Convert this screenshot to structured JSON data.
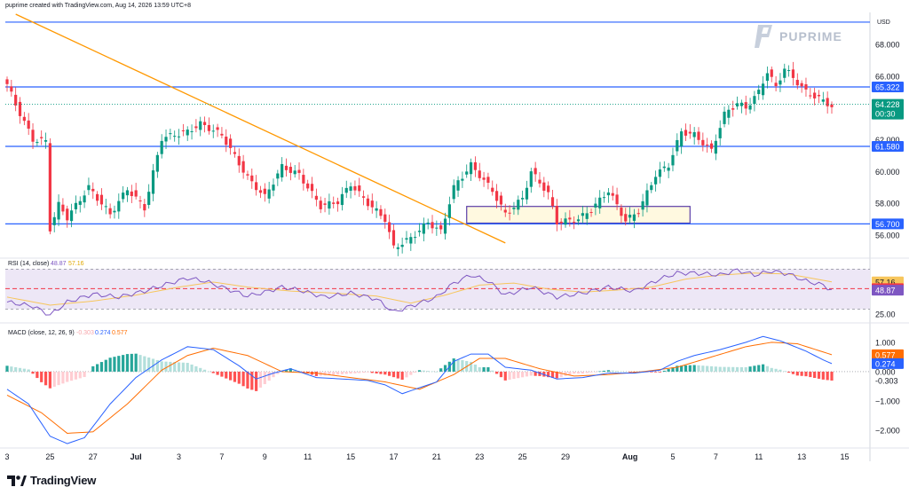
{
  "header": {
    "note": "puprime created with TradingView.com, Aug 14, 2026 13:59 UTC+8"
  },
  "branding": {
    "watermark": "PUPRIME",
    "footer_logo_text": "TradingView"
  },
  "colors": {
    "bull": "#089981",
    "bear": "#f23645",
    "level": "#2962ff",
    "trendline": "#ff9800",
    "rsi": "#7e57c2",
    "rsi_ma": "#f7c65c",
    "rsi_band": "#ede7f6",
    "macd": "#2962ff",
    "signal": "#ff6d00",
    "hist_bull": "#26a69a",
    "hist_bull_light": "#b2dfdb",
    "hist_bear": "#ff5252",
    "hist_bear_light": "#ffcdd2",
    "box_border": "#5b3fa8",
    "box_fill": "#fff9e0",
    "price_label": "#089981"
  },
  "chart_data": [
    {
      "type": "candlestick",
      "currency_label": "USD",
      "y_axis_ticks": [
        "68.000",
        "66.000",
        "62.000",
        "60.000",
        "58.000",
        "56.000"
      ],
      "ylim": [
        54.6,
        69.9
      ],
      "x_tick_labels": [
        "3",
        "25",
        "27",
        "Jul",
        "3",
        "7",
        "9",
        "11",
        "15",
        "17",
        "21",
        "23",
        "25",
        "29",
        "Aug",
        "5",
        "7",
        "11",
        "13",
        "15"
      ],
      "x_tick_positions": [
        0,
        10,
        20,
        30,
        40,
        50,
        60,
        70,
        80,
        90,
        100,
        110,
        120,
        130,
        145,
        155,
        165,
        175,
        185,
        195
      ],
      "bars_count": 193,
      "anchors": [
        [
          0,
          65.5
        ],
        [
          2,
          64.2
        ],
        [
          6,
          62.0
        ],
        [
          9,
          61.9
        ],
        [
          10,
          56.4
        ],
        [
          12,
          57.9
        ],
        [
          14,
          57.1
        ],
        [
          19,
          59.0
        ],
        [
          24,
          57.3
        ],
        [
          28,
          58.9
        ],
        [
          32,
          57.7
        ],
        [
          36,
          62.1
        ],
        [
          42,
          62.5
        ],
        [
          45,
          63.0
        ],
        [
          50,
          62.3
        ],
        [
          56,
          59.6
        ],
        [
          60,
          58.4
        ],
        [
          64,
          60.3
        ],
        [
          68,
          59.8
        ],
        [
          73,
          57.8
        ],
        [
          77,
          58.1
        ],
        [
          80,
          59.2
        ],
        [
          84,
          58.0
        ],
        [
          88,
          57.0
        ],
        [
          90,
          55.2
        ],
        [
          94,
          55.8
        ],
        [
          98,
          56.8
        ],
        [
          101,
          56.2
        ],
        [
          104,
          59.0
        ],
        [
          108,
          60.4
        ],
        [
          113,
          58.8
        ],
        [
          116,
          57.3
        ],
        [
          120,
          58.3
        ],
        [
          122,
          60.0
        ],
        [
          126,
          58.6
        ],
        [
          128,
          56.8
        ],
        [
          133,
          57.0
        ],
        [
          136,
          57.6
        ],
        [
          140,
          58.8
        ],
        [
          144,
          56.9
        ],
        [
          147,
          57.5
        ],
        [
          151,
          59.8
        ],
        [
          154,
          60.4
        ],
        [
          157,
          62.5
        ],
        [
          160,
          62.3
        ],
        [
          164,
          61.3
        ],
        [
          167,
          63.6
        ],
        [
          170,
          64.3
        ],
        [
          172,
          64.0
        ],
        [
          175,
          65.0
        ],
        [
          177,
          66.3
        ],
        [
          179,
          65.3
        ],
        [
          181,
          66.5
        ],
        [
          184,
          65.6
        ],
        [
          186,
          65.0
        ],
        [
          189,
          64.6
        ],
        [
          192,
          64.1
        ]
      ],
      "price_levels": [
        {
          "name": "resistance-top",
          "value": 69.4,
          "label": ""
        },
        {
          "name": "resistance-1",
          "value": 65.322,
          "label": "65.322"
        },
        {
          "name": "support-1",
          "value": 61.58,
          "label": "61.580"
        },
        {
          "name": "support-2",
          "value": 56.7,
          "label": "56.700"
        }
      ],
      "last_price": {
        "value": 64.228,
        "label": "64.228",
        "countdown": "00:30"
      },
      "trendline": {
        "start": [
          2,
          69.9
        ],
        "end": [
          116,
          55.5
        ]
      },
      "consolidation_box": {
        "x_start": 107,
        "x_end": 159,
        "y_low": 56.75,
        "y_high": 57.8
      }
    },
    {
      "type": "line",
      "name": "RSI",
      "legend_label": "RSI (14, close)",
      "legend_values": [
        "48.87",
        "57.16"
      ],
      "y_axis_ticks": [
        "25.00"
      ],
      "ylim": [
        18,
        80
      ],
      "band": [
        30,
        70
      ],
      "current": {
        "rsi": 48.87,
        "rsi_ma": 57.16,
        "midline": 50.43
      },
      "value_labels": [
        "57.16",
        "50.43",
        "48.87"
      ],
      "rsi_anchors": [
        [
          0,
          37
        ],
        [
          6,
          33
        ],
        [
          10,
          24
        ],
        [
          14,
          37
        ],
        [
          20,
          45
        ],
        [
          26,
          42
        ],
        [
          32,
          48
        ],
        [
          38,
          56
        ],
        [
          42,
          61
        ],
        [
          46,
          58
        ],
        [
          50,
          52
        ],
        [
          56,
          43
        ],
        [
          60,
          47
        ],
        [
          64,
          52
        ],
        [
          68,
          49
        ],
        [
          74,
          42
        ],
        [
          80,
          46
        ],
        [
          86,
          40
        ],
        [
          90,
          27
        ],
        [
          96,
          36
        ],
        [
          100,
          42
        ],
        [
          104,
          56
        ],
        [
          108,
          64
        ],
        [
          112,
          58
        ],
        [
          116,
          44
        ],
        [
          122,
          52
        ],
        [
          128,
          42
        ],
        [
          134,
          46
        ],
        [
          140,
          52
        ],
        [
          146,
          48
        ],
        [
          152,
          60
        ],
        [
          156,
          66
        ],
        [
          160,
          66
        ],
        [
          166,
          64
        ],
        [
          170,
          69
        ],
        [
          174,
          64
        ],
        [
          178,
          68
        ],
        [
          182,
          65
        ],
        [
          186,
          58
        ],
        [
          190,
          54
        ],
        [
          192,
          48.87
        ]
      ],
      "ma_anchors": [
        [
          0,
          42
        ],
        [
          10,
          34
        ],
        [
          20,
          38
        ],
        [
          30,
          44
        ],
        [
          40,
          52
        ],
        [
          48,
          57
        ],
        [
          56,
          52
        ],
        [
          66,
          48
        ],
        [
          76,
          46
        ],
        [
          86,
          43
        ],
        [
          94,
          36
        ],
        [
          102,
          44
        ],
        [
          110,
          54
        ],
        [
          118,
          56
        ],
        [
          126,
          50
        ],
        [
          134,
          47
        ],
        [
          142,
          49
        ],
        [
          150,
          52
        ],
        [
          158,
          60
        ],
        [
          166,
          64
        ],
        [
          174,
          66
        ],
        [
          182,
          65
        ],
        [
          192,
          57.16
        ]
      ]
    },
    {
      "type": "line",
      "name": "MACD",
      "legend_label": "MACD (close, 12, 26, 9)",
      "legend_values": [
        "-0.303",
        "0.274",
        "0.577"
      ],
      "y_axis_ticks": [
        "1.000",
        "0.000",
        "−1.000",
        "−2.000"
      ],
      "ylim": [
        -2.6,
        1.6
      ],
      "current": {
        "histogram": -0.303,
        "macd": 0.274,
        "signal": 0.577
      },
      "value_labels": [
        "0.577",
        "0.274",
        "-0.303"
      ],
      "macd_anchors": [
        [
          0,
          -0.6
        ],
        [
          5,
          -1.1
        ],
        [
          10,
          -2.2
        ],
        [
          14,
          -2.45
        ],
        [
          18,
          -2.25
        ],
        [
          24,
          -1.1
        ],
        [
          30,
          -0.2
        ],
        [
          36,
          0.4
        ],
        [
          42,
          0.85
        ],
        [
          48,
          0.75
        ],
        [
          54,
          0.2
        ],
        [
          58,
          -0.25
        ],
        [
          62,
          -0.05
        ],
        [
          66,
          0.1
        ],
        [
          72,
          -0.2
        ],
        [
          78,
          -0.25
        ],
        [
          84,
          -0.3
        ],
        [
          88,
          -0.45
        ],
        [
          92,
          -0.75
        ],
        [
          96,
          -0.55
        ],
        [
          100,
          -0.35
        ],
        [
          104,
          0.35
        ],
        [
          108,
          0.6
        ],
        [
          112,
          0.6
        ],
        [
          116,
          0.15
        ],
        [
          122,
          0.05
        ],
        [
          128,
          -0.25
        ],
        [
          134,
          -0.2
        ],
        [
          140,
          -0.05
        ],
        [
          146,
          -0.05
        ],
        [
          152,
          0.05
        ],
        [
          156,
          0.35
        ],
        [
          160,
          0.55
        ],
        [
          166,
          0.75
        ],
        [
          172,
          1.0
        ],
        [
          176,
          1.2
        ],
        [
          180,
          1.05
        ],
        [
          186,
          0.7
        ],
        [
          190,
          0.4
        ],
        [
          192,
          0.274
        ]
      ],
      "signal_anchors": [
        [
          0,
          -0.8
        ],
        [
          8,
          -1.4
        ],
        [
          14,
          -2.1
        ],
        [
          20,
          -2.05
        ],
        [
          28,
          -1.1
        ],
        [
          36,
          0.05
        ],
        [
          42,
          0.55
        ],
        [
          48,
          0.8
        ],
        [
          56,
          0.55
        ],
        [
          64,
          0.0
        ],
        [
          72,
          -0.05
        ],
        [
          80,
          -0.2
        ],
        [
          88,
          -0.35
        ],
        [
          96,
          -0.6
        ],
        [
          104,
          -0.1
        ],
        [
          110,
          0.45
        ],
        [
          116,
          0.45
        ],
        [
          124,
          0.1
        ],
        [
          132,
          -0.15
        ],
        [
          140,
          -0.1
        ],
        [
          148,
          0.0
        ],
        [
          156,
          0.15
        ],
        [
          164,
          0.5
        ],
        [
          172,
          0.85
        ],
        [
          178,
          1.0
        ],
        [
          184,
          0.95
        ],
        [
          192,
          0.577
        ]
      ]
    }
  ]
}
